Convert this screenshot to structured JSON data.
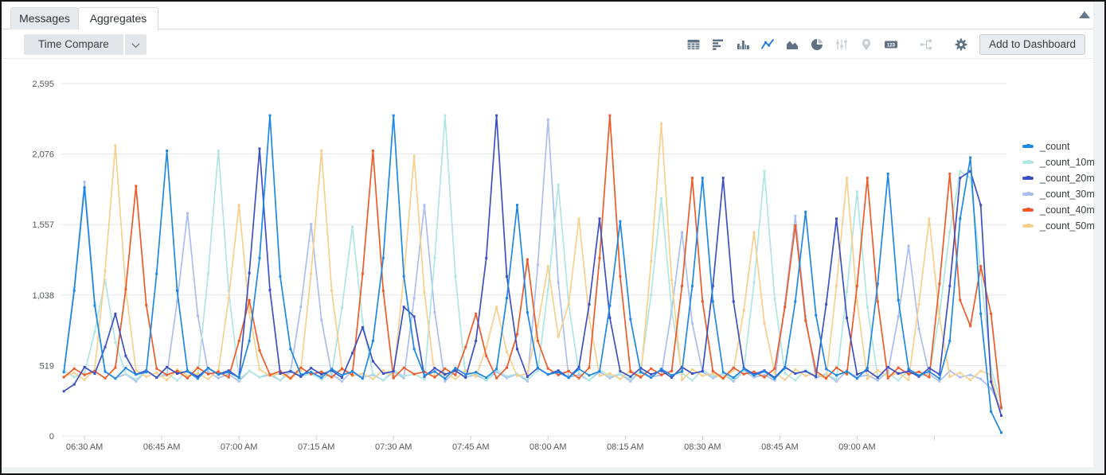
{
  "tabs": {
    "messages": "Messages",
    "aggregates": "Aggregates"
  },
  "toolbar": {
    "time_compare_label": "Time Compare",
    "add_to_dashboard_label": "Add to Dashboard",
    "icons": [
      {
        "name": "table-icon",
        "state": "enabled"
      },
      {
        "name": "horizontal-bar-chart-icon",
        "state": "enabled"
      },
      {
        "name": "column-chart-icon",
        "state": "enabled"
      },
      {
        "name": "line-chart-icon",
        "state": "active"
      },
      {
        "name": "area-chart-icon",
        "state": "enabled"
      },
      {
        "name": "pie-chart-icon",
        "state": "enabled"
      },
      {
        "name": "sliders-icon",
        "state": "disabled"
      },
      {
        "name": "map-pin-icon",
        "state": "disabled"
      },
      {
        "name": "single-value-123-icon",
        "state": "enabled"
      },
      {
        "name": "flow-diagram-icon",
        "state": "disabled",
        "pregap": true
      },
      {
        "name": "settings-gear-icon",
        "state": "enabled",
        "pregap": true
      }
    ]
  },
  "colors": {
    "icon_enabled": "#5f7285",
    "icon_disabled": "#c7d0d8",
    "icon_active": "#2d7fe0",
    "gridline": "#e3e6e8",
    "axis_text": "#54585d"
  },
  "chart_data": {
    "type": "line",
    "title": "",
    "xlabel": "",
    "ylabel": "",
    "grid": "horizontal",
    "legend_position": "top-right",
    "x_axis": {
      "start_time": "06:26 AM",
      "start_minutes_after_midnight": 386,
      "step_minutes": 2,
      "points": 92,
      "range_minutes_after_midnight": [
        385.5,
        569
      ],
      "ticks": [
        {
          "m": 390,
          "label": "06:30 AM"
        },
        {
          "m": 405,
          "label": "06:45 AM"
        },
        {
          "m": 420,
          "label": "07:00 AM"
        },
        {
          "m": 435,
          "label": "07:15 AM"
        },
        {
          "m": 450,
          "label": "07:30 AM"
        },
        {
          "m": 465,
          "label": "07:45 AM"
        },
        {
          "m": 480,
          "label": "08:00 AM"
        },
        {
          "m": 495,
          "label": "08:15 AM"
        },
        {
          "m": 510,
          "label": "08:30 AM"
        },
        {
          "m": 525,
          "label": "08:45 AM"
        },
        {
          "m": 540,
          "label": "09:00 AM"
        },
        {
          "m": 555,
          "label": ""
        }
      ]
    },
    "y_axis": {
      "min": 0,
      "max": 2595,
      "ticks": [
        {
          "v": 0,
          "label": "0"
        },
        {
          "v": 519,
          "label": "519"
        },
        {
          "v": 1038,
          "label": "1,038"
        },
        {
          "v": 1557,
          "label": "1,557"
        },
        {
          "v": 2076,
          "label": "2,076"
        },
        {
          "v": 2595,
          "label": "2,595"
        }
      ]
    },
    "series": [
      {
        "name": "_count",
        "color": "#1e88e5",
        "values": [
          470,
          1070,
          1830,
          960,
          475,
          423,
          500,
          453,
          470,
          1195,
          2100,
          1070,
          475,
          423,
          500,
          453,
          470,
          430,
          700,
          1310,
          2360,
          1175,
          640,
          453,
          470,
          430,
          493,
          447,
          475,
          423,
          700,
          1310,
          2360,
          1175,
          640,
          447,
          475,
          423,
          500,
          453,
          470,
          430,
          493,
          1015,
          1700,
          910,
          500,
          453,
          470,
          430,
          493,
          447,
          475,
          960,
          1580,
          860,
          470,
          430,
          493,
          447,
          475,
          1105,
          1900,
          990,
          470,
          430,
          493,
          447,
          475,
          423,
          500,
          990,
          1650,
          890,
          493,
          447,
          475,
          423,
          500,
          1120,
          1930,
          1000,
          493,
          447,
          475,
          423,
          700,
          1600,
          2050,
          900,
          180,
          25
        ]
      },
      {
        "name": "_count_10m",
        "color": "#aee6e2",
        "values": [
          480,
          434,
          462,
          770,
          1150,
          690,
          457,
          417,
          480,
          434,
          462,
          410,
          487,
          440,
          1195,
          2100,
          1070,
          417,
          480,
          434,
          462,
          410,
          487,
          440,
          457,
          417,
          462,
          945,
          1540,
          845,
          457,
          410,
          487,
          440,
          457,
          417,
          1310,
          2360,
          1175,
          434,
          462,
          410,
          487,
          440,
          457,
          417,
          480,
          1080,
          1850,
          970,
          462,
          410,
          487,
          440,
          457,
          417,
          480,
          1040,
          1750,
          930,
          462,
          410,
          487,
          440,
          457,
          417,
          480,
          1130,
          1950,
          1010,
          462,
          410,
          487,
          440,
          457,
          417,
          1060,
          1800,
          950,
          434,
          462,
          410,
          487,
          440,
          457,
          900,
          1500,
          1950,
          1900,
          1200,
          500,
          230
        ]
      },
      {
        "name": "_count_20m",
        "color": "#3d50c3",
        "values": [
          330,
          380,
          507,
          460,
          655,
          900,
          590,
          454,
          482,
          430,
          507,
          460,
          477,
          437,
          500,
          454,
          482,
          430,
          1200,
          2115,
          1075,
          460,
          477,
          437,
          500,
          454,
          482,
          430,
          610,
          800,
          550,
          460,
          477,
          950,
          880,
          437,
          500,
          454,
          482,
          430,
          700,
          1310,
          2360,
          1175,
          640,
          437,
          500,
          454,
          482,
          430,
          507,
          970,
          1600,
          870,
          477,
          437,
          500,
          454,
          482,
          430,
          507,
          460,
          477,
          1105,
          1900,
          990,
          500,
          454,
          482,
          430,
          507,
          460,
          477,
          437,
          970,
          1600,
          870,
          454,
          482,
          430,
          507,
          460,
          477,
          437,
          500,
          454,
          1105,
          1900,
          1950,
          1700,
          400,
          150
        ]
      },
      {
        "name": "_count_30m",
        "color": "#aabef0",
        "values": [
          480,
          1090,
          1870,
          980,
          473,
          427,
          455,
          403,
          480,
          433,
          450,
          990,
          1640,
          885,
          473,
          427,
          455,
          403,
          480,
          433,
          450,
          410,
          473,
          950,
          1560,
          855,
          455,
          403,
          480,
          433,
          450,
          410,
          473,
          427,
          1015,
          1700,
          910,
          403,
          480,
          433,
          450,
          410,
          473,
          427,
          455,
          403,
          1260,
          2330,
          1130,
          433,
          450,
          410,
          473,
          427,
          455,
          403,
          480,
          433,
          450,
          925,
          1500,
          830,
          473,
          427,
          455,
          403,
          480,
          433,
          450,
          410,
          980,
          1620,
          880,
          427,
          455,
          403,
          480,
          433,
          450,
          410,
          473,
          880,
          1400,
          790,
          455,
          403,
          480,
          433,
          450,
          420,
          350,
          200
        ]
      },
      {
        "name": "_count_40m",
        "color": "#f05a28",
        "values": [
          433,
          496,
          450,
          478,
          426,
          503,
          1080,
          1840,
          965,
          496,
          450,
          478,
          426,
          503,
          456,
          473,
          433,
          700,
          1000,
          630,
          450,
          478,
          426,
          503,
          456,
          473,
          433,
          496,
          450,
          1195,
          2100,
          1070,
          426,
          503,
          456,
          473,
          433,
          496,
          450,
          655,
          900,
          590,
          426,
          503,
          750,
          1300,
          700,
          496,
          450,
          478,
          426,
          503,
          1310,
          2360,
          1175,
          473,
          433,
          496,
          450,
          478,
          1105,
          1900,
          990,
          478,
          426,
          503,
          456,
          473,
          433,
          496,
          950,
          1550,
          850,
          478,
          426,
          503,
          456,
          1105,
          1900,
          990,
          426,
          503,
          456,
          473,
          433,
          1120,
          1930,
          1000,
          810,
          1250,
          900,
          210
        ]
      },
      {
        "name": "_count_50m",
        "color": "#f7d08e",
        "values": [
          437,
          465,
          413,
          490,
          1215,
          2140,
          1085,
          483,
          437,
          465,
          413,
          490,
          443,
          460,
          420,
          483,
          1015,
          1700,
          910,
          490,
          443,
          460,
          420,
          483,
          1195,
          2100,
          1070,
          490,
          443,
          460,
          420,
          483,
          437,
          1175,
          2060,
          1055,
          443,
          460,
          420,
          483,
          437,
          650,
          950,
          620,
          443,
          460,
          815,
          1250,
          730,
          970,
          1600,
          870,
          443,
          460,
          420,
          483,
          437,
          1285,
          2300,
          1150,
          413,
          490,
          443,
          460,
          420,
          483,
          925,
          1500,
          830,
          465,
          413,
          490,
          443,
          460,
          420,
          1105,
          1900,
          990,
          420,
          483,
          437,
          465,
          413,
          970,
          1600,
          870,
          437,
          465,
          413,
          480,
          450,
          150
        ]
      }
    ]
  }
}
